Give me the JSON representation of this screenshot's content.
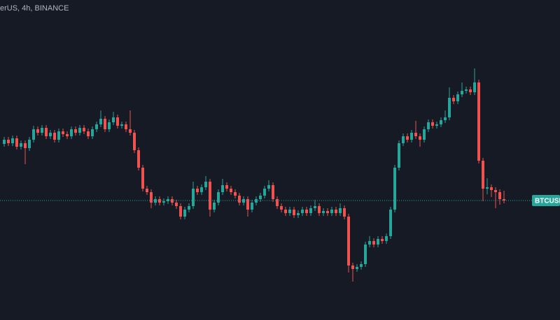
{
  "chart_data": {
    "type": "candlestick",
    "title": "erUS, 4h, BINANCE",
    "price_label": "BTCUSD",
    "last_price": 171,
    "ylim": [
      0,
      458
    ],
    "up_color": "#26a69a",
    "down_color": "#ef5350",
    "open": [
      252,
      258,
      253,
      260,
      248,
      253,
      246,
      258,
      273,
      268,
      275,
      263,
      268,
      258,
      270,
      266,
      263,
      273,
      268,
      275,
      270,
      263,
      273,
      280,
      288,
      273,
      283,
      290,
      278,
      280,
      273,
      268,
      243,
      218,
      188,
      183,
      168,
      173,
      168,
      170,
      173,
      168,
      163,
      148,
      158,
      163,
      188,
      183,
      190,
      198,
      158,
      168,
      183,
      193,
      188,
      183,
      178,
      168,
      173,
      158,
      168,
      173,
      178,
      188,
      193,
      173,
      163,
      158,
      153,
      158,
      150,
      153,
      158,
      153,
      160,
      163,
      153,
      156,
      153,
      158,
      153,
      160,
      148,
      78,
      73,
      76,
      80,
      108,
      113,
      108,
      116,
      113,
      120,
      158,
      218,
      253,
      263,
      258,
      268,
      263,
      258,
      273,
      283,
      278,
      280,
      286,
      290,
      318,
      313,
      323,
      328,
      330,
      326,
      340,
      228,
      188,
      190,
      186,
      183,
      173
    ],
    "high": [
      262,
      262,
      264,
      264,
      257,
      257,
      262,
      278,
      277,
      279,
      279,
      272,
      272,
      274,
      274,
      270,
      277,
      277,
      279,
      279,
      274,
      277,
      284,
      300,
      292,
      287,
      298,
      294,
      284,
      284,
      300,
      272,
      247,
      222,
      192,
      187,
      177,
      177,
      174,
      177,
      177,
      172,
      167,
      162,
      167,
      198,
      192,
      194,
      206,
      202,
      172,
      187,
      202,
      197,
      192,
      187,
      182,
      177,
      177,
      172,
      177,
      182,
      192,
      200,
      197,
      177,
      167,
      162,
      162,
      162,
      157,
      162,
      162,
      164,
      172,
      167,
      160,
      160,
      162,
      162,
      167,
      164,
      152,
      82,
      80,
      84,
      112,
      120,
      117,
      120,
      120,
      124,
      162,
      222,
      257,
      267,
      267,
      272,
      285,
      267,
      277,
      287,
      287,
      284,
      290,
      300,
      333,
      322,
      327,
      340,
      334,
      334,
      360,
      344,
      232,
      203,
      194,
      190,
      187,
      185
    ],
    "low": [
      248,
      249,
      249,
      244,
      244,
      223,
      242,
      254,
      264,
      264,
      259,
      259,
      254,
      254,
      262,
      259,
      259,
      264,
      264,
      266,
      259,
      259,
      269,
      276,
      269,
      269,
      279,
      274,
      274,
      269,
      264,
      239,
      214,
      184,
      179,
      160,
      164,
      164,
      164,
      166,
      164,
      159,
      144,
      144,
      154,
      159,
      179,
      179,
      186,
      148,
      154,
      164,
      179,
      184,
      179,
      174,
      164,
      164,
      148,
      154,
      164,
      169,
      174,
      184,
      169,
      159,
      154,
      149,
      149,
      146,
      146,
      149,
      149,
      149,
      156,
      149,
      149,
      149,
      149,
      149,
      149,
      144,
      68,
      55,
      69,
      72,
      76,
      104,
      104,
      104,
      109,
      109,
      116,
      154,
      214,
      249,
      254,
      254,
      259,
      248,
      254,
      269,
      274,
      274,
      276,
      282,
      286,
      309,
      309,
      319,
      324,
      322,
      322,
      224,
      170,
      180,
      176,
      160,
      165,
      167
    ],
    "close": [
      258,
      253,
      260,
      248,
      253,
      246,
      258,
      273,
      268,
      275,
      263,
      268,
      258,
      270,
      266,
      263,
      273,
      268,
      275,
      270,
      263,
      273,
      280,
      288,
      273,
      283,
      290,
      278,
      280,
      273,
      268,
      243,
      218,
      188,
      183,
      168,
      173,
      168,
      170,
      173,
      168,
      163,
      148,
      158,
      163,
      188,
      183,
      190,
      198,
      158,
      168,
      183,
      193,
      188,
      183,
      178,
      168,
      173,
      158,
      168,
      173,
      178,
      188,
      193,
      173,
      163,
      158,
      153,
      158,
      150,
      153,
      158,
      153,
      160,
      163,
      153,
      156,
      153,
      158,
      153,
      160,
      148,
      78,
      73,
      76,
      80,
      108,
      113,
      108,
      116,
      113,
      120,
      158,
      218,
      253,
      263,
      258,
      268,
      263,
      258,
      273,
      283,
      278,
      280,
      286,
      290,
      318,
      313,
      323,
      328,
      330,
      326,
      340,
      228,
      188,
      190,
      186,
      183,
      173,
      171
    ]
  }
}
